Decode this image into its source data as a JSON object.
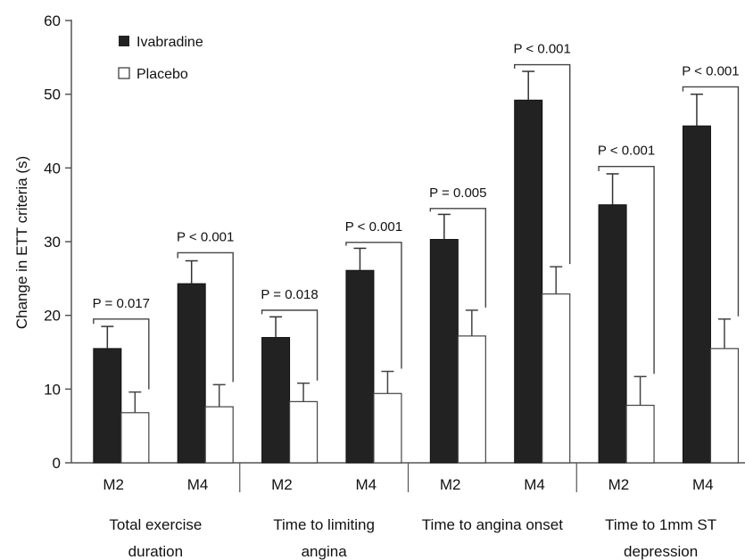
{
  "chart_data": {
    "type": "bar",
    "ylabel": "Change in ETT criteria (s)",
    "xlabel": "",
    "ylim": [
      0,
      60
    ],
    "yticks": [
      "0",
      "10",
      "20",
      "30",
      "40",
      "50",
      "60"
    ],
    "grid": false,
    "legend_position": "top-left",
    "series": [
      {
        "name": "Ivabradine",
        "color": "#222222",
        "values": [
          15.5,
          24.3,
          17.0,
          26.1,
          30.3,
          49.2,
          35.0,
          45.7
        ],
        "errors": [
          3.0,
          3.1,
          2.8,
          3.0,
          3.4,
          3.9,
          4.2,
          4.3
        ]
      },
      {
        "name": "Placebo",
        "color": "#ffffff",
        "values": [
          6.8,
          7.6,
          8.3,
          9.4,
          17.2,
          22.9,
          7.8,
          15.5
        ],
        "errors": [
          2.8,
          3.0,
          2.5,
          3.0,
          3.5,
          3.7,
          3.9,
          4.0
        ]
      }
    ],
    "categories": [
      "M2",
      "M4",
      "M2",
      "M4",
      "M2",
      "M4",
      "M2",
      "M4"
    ],
    "groups": [
      {
        "line1": "Total exercise",
        "line2": "duration"
      },
      {
        "line1": "Time to limiting",
        "line2": "angina"
      },
      {
        "line1": "Time to angina onset",
        "line2": ""
      },
      {
        "line1": "Time to 1mm ST",
        "line2": "depression"
      }
    ],
    "annotations": [
      {
        "label": "P = 0.017",
        "value": 19.5
      },
      {
        "label": "P < 0.001",
        "value": 28.5
      },
      {
        "label": "P = 0.018",
        "value": 20.7
      },
      {
        "label": "P < 0.001",
        "value": 29.9
      },
      {
        "label": "P = 0.005",
        "value": 34.5
      },
      {
        "label": "P < 0.001",
        "value": 54.0
      },
      {
        "label": "P < 0.001",
        "value": 40.2
      },
      {
        "label": "P < 0.001",
        "value": 51.0
      }
    ]
  }
}
